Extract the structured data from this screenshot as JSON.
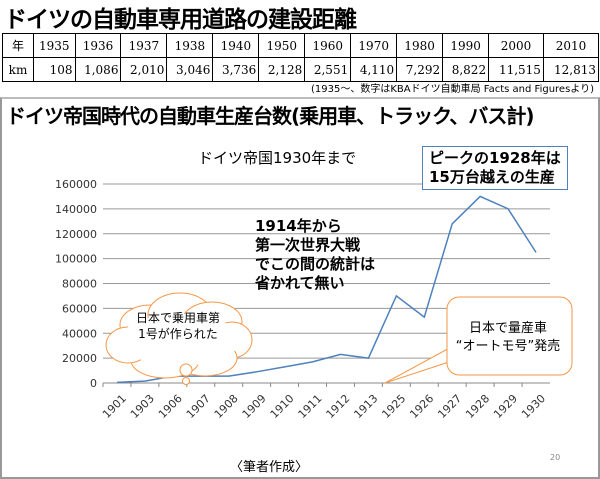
{
  "title": "ドイツの自動車専用道路の建設距離",
  "table": {
    "row_labels": [
      "年",
      "km"
    ],
    "years": [
      "1935",
      "1936",
      "1937",
      "1938",
      "1940",
      "1950",
      "1960",
      "1970",
      "1980",
      "1990",
      "2000",
      "2010"
    ],
    "km": [
      "108",
      "1,086",
      "2,010",
      "3,046",
      "3,736",
      "2,128",
      "2,551",
      "4,110",
      "7,292",
      "8,822",
      "11,515",
      "12,813"
    ]
  },
  "note": "(1935～、数字はKBAドイツ自動車局 Facts and Figuresより)",
  "slide_title": "ドイツ帝国時代の自動車生産台数(乗用車、トラック、バス計)",
  "chart_data": {
    "type": "line",
    "title": "ドイツ帝国1930年まで",
    "categories": [
      "1901",
      "1903",
      "1906",
      "1907",
      "1908",
      "1909",
      "1910",
      "1911",
      "1912",
      "1913",
      "1925",
      "1926",
      "1927",
      "1928",
      "1929",
      "1930"
    ],
    "values": [
      500,
      1500,
      5500,
      5500,
      5500,
      9000,
      13000,
      17000,
      23000,
      20000,
      70000,
      53000,
      128000,
      150000,
      140000,
      105000
    ],
    "ylim": [
      0,
      160000
    ],
    "yticks": [
      "0",
      "20000",
      "40000",
      "60000",
      "80000",
      "100000",
      "120000",
      "140000",
      "160000"
    ],
    "line_color": "#4f81bd",
    "grid": true
  },
  "annotations": {
    "peak": [
      "ピークの1928年は",
      "15万台越えの生産"
    ],
    "war": [
      "1914年から",
      "第一次世界大戦",
      "でこの間の統計は",
      "省かれて無い"
    ],
    "cloud": [
      "日本で乗用車第",
      "1号が作られた"
    ],
    "otomo": [
      "日本で量産車",
      "“オートモ号”発売"
    ]
  },
  "footer": "〈筆者作成〉",
  "page_number": "20"
}
